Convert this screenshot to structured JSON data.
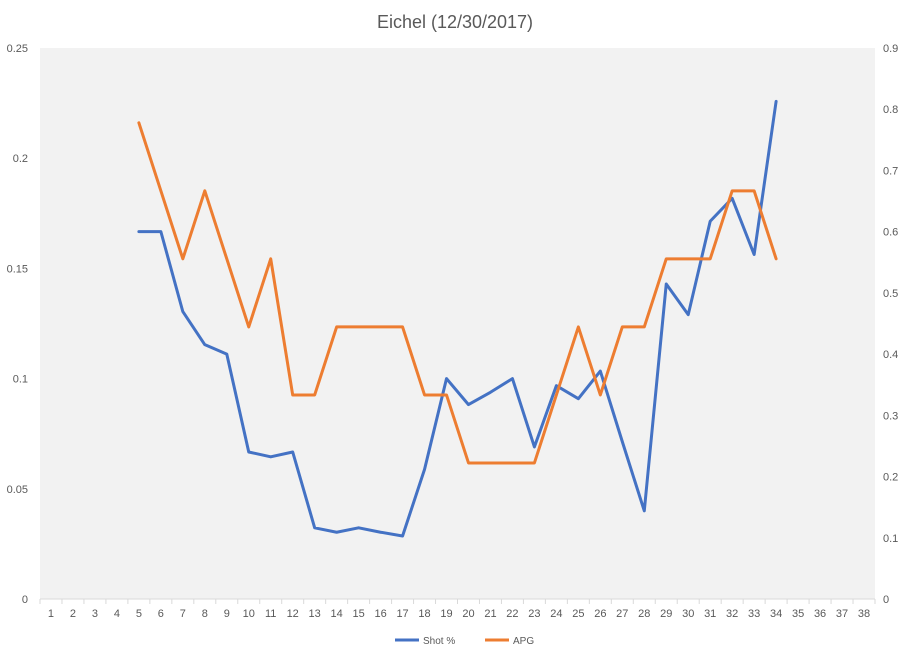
{
  "chart_data": {
    "type": "line",
    "title": "Eichel (12/30/2017)",
    "x": [
      1,
      2,
      3,
      4,
      5,
      6,
      7,
      8,
      9,
      10,
      11,
      12,
      13,
      14,
      15,
      16,
      17,
      18,
      19,
      20,
      21,
      22,
      23,
      24,
      25,
      26,
      27,
      28,
      29,
      30,
      31,
      32,
      33,
      34,
      35,
      36,
      37,
      38
    ],
    "xlim": [
      1,
      38
    ],
    "y_left": {
      "ylim": [
        0,
        0.25
      ],
      "ticks": [
        "0",
        "0.05",
        "0.1",
        "0.15",
        "0.2",
        "0.25"
      ]
    },
    "y_right": {
      "ylim": [
        0,
        0.9
      ],
      "ticks": [
        "0",
        "0.1",
        "0.2",
        "0.3",
        "0.4",
        "0.5",
        "0.6",
        "0.7",
        "0.8",
        "0.9"
      ]
    },
    "grid": false,
    "legend": "bottom",
    "series": [
      {
        "name": "Shot %",
        "axis": "left",
        "color": "#4472C4",
        "x": [
          5,
          6,
          7,
          8,
          9,
          10,
          11,
          12,
          13,
          14,
          15,
          16,
          17,
          18,
          19,
          20,
          21,
          22,
          23,
          24,
          25,
          26,
          27,
          28,
          29,
          30,
          31,
          32,
          33,
          34
        ],
        "values": [
          0.1667,
          0.1667,
          0.1304,
          0.1154,
          0.1111,
          0.0667,
          0.0645,
          0.0667,
          0.0323,
          0.0303,
          0.0323,
          0.0303,
          0.0286,
          0.0588,
          0.1,
          0.0882,
          0.0938,
          0.1,
          0.069,
          0.0968,
          0.0909,
          0.1034,
          0.0714,
          0.04,
          0.1429,
          0.129,
          0.1714,
          0.1818,
          0.1563,
          0.2258
        ]
      },
      {
        "name": "APG",
        "axis": "right",
        "color": "#ED7D31",
        "x": [
          5,
          6,
          7,
          8,
          9,
          10,
          11,
          12,
          13,
          14,
          15,
          16,
          17,
          18,
          19,
          20,
          21,
          22,
          23,
          24,
          25,
          26,
          27,
          28,
          29,
          30,
          31,
          32,
          33,
          34
        ],
        "values": [
          0.7778,
          0.6667,
          0.5556,
          0.6667,
          0.5556,
          0.4444,
          0.5556,
          0.3333,
          0.3333,
          0.4444,
          0.4444,
          0.4444,
          0.4444,
          0.3333,
          0.3333,
          0.2222,
          0.2222,
          0.2222,
          0.2222,
          0.3333,
          0.4444,
          0.3333,
          0.4444,
          0.4444,
          0.5556,
          0.5556,
          0.5556,
          0.6667,
          0.6667,
          0.5556
        ]
      }
    ]
  },
  "colors": {
    "plot_area": "#F2F2F2",
    "axis_text": "#595959",
    "axis_line": "#D9D9D9"
  }
}
